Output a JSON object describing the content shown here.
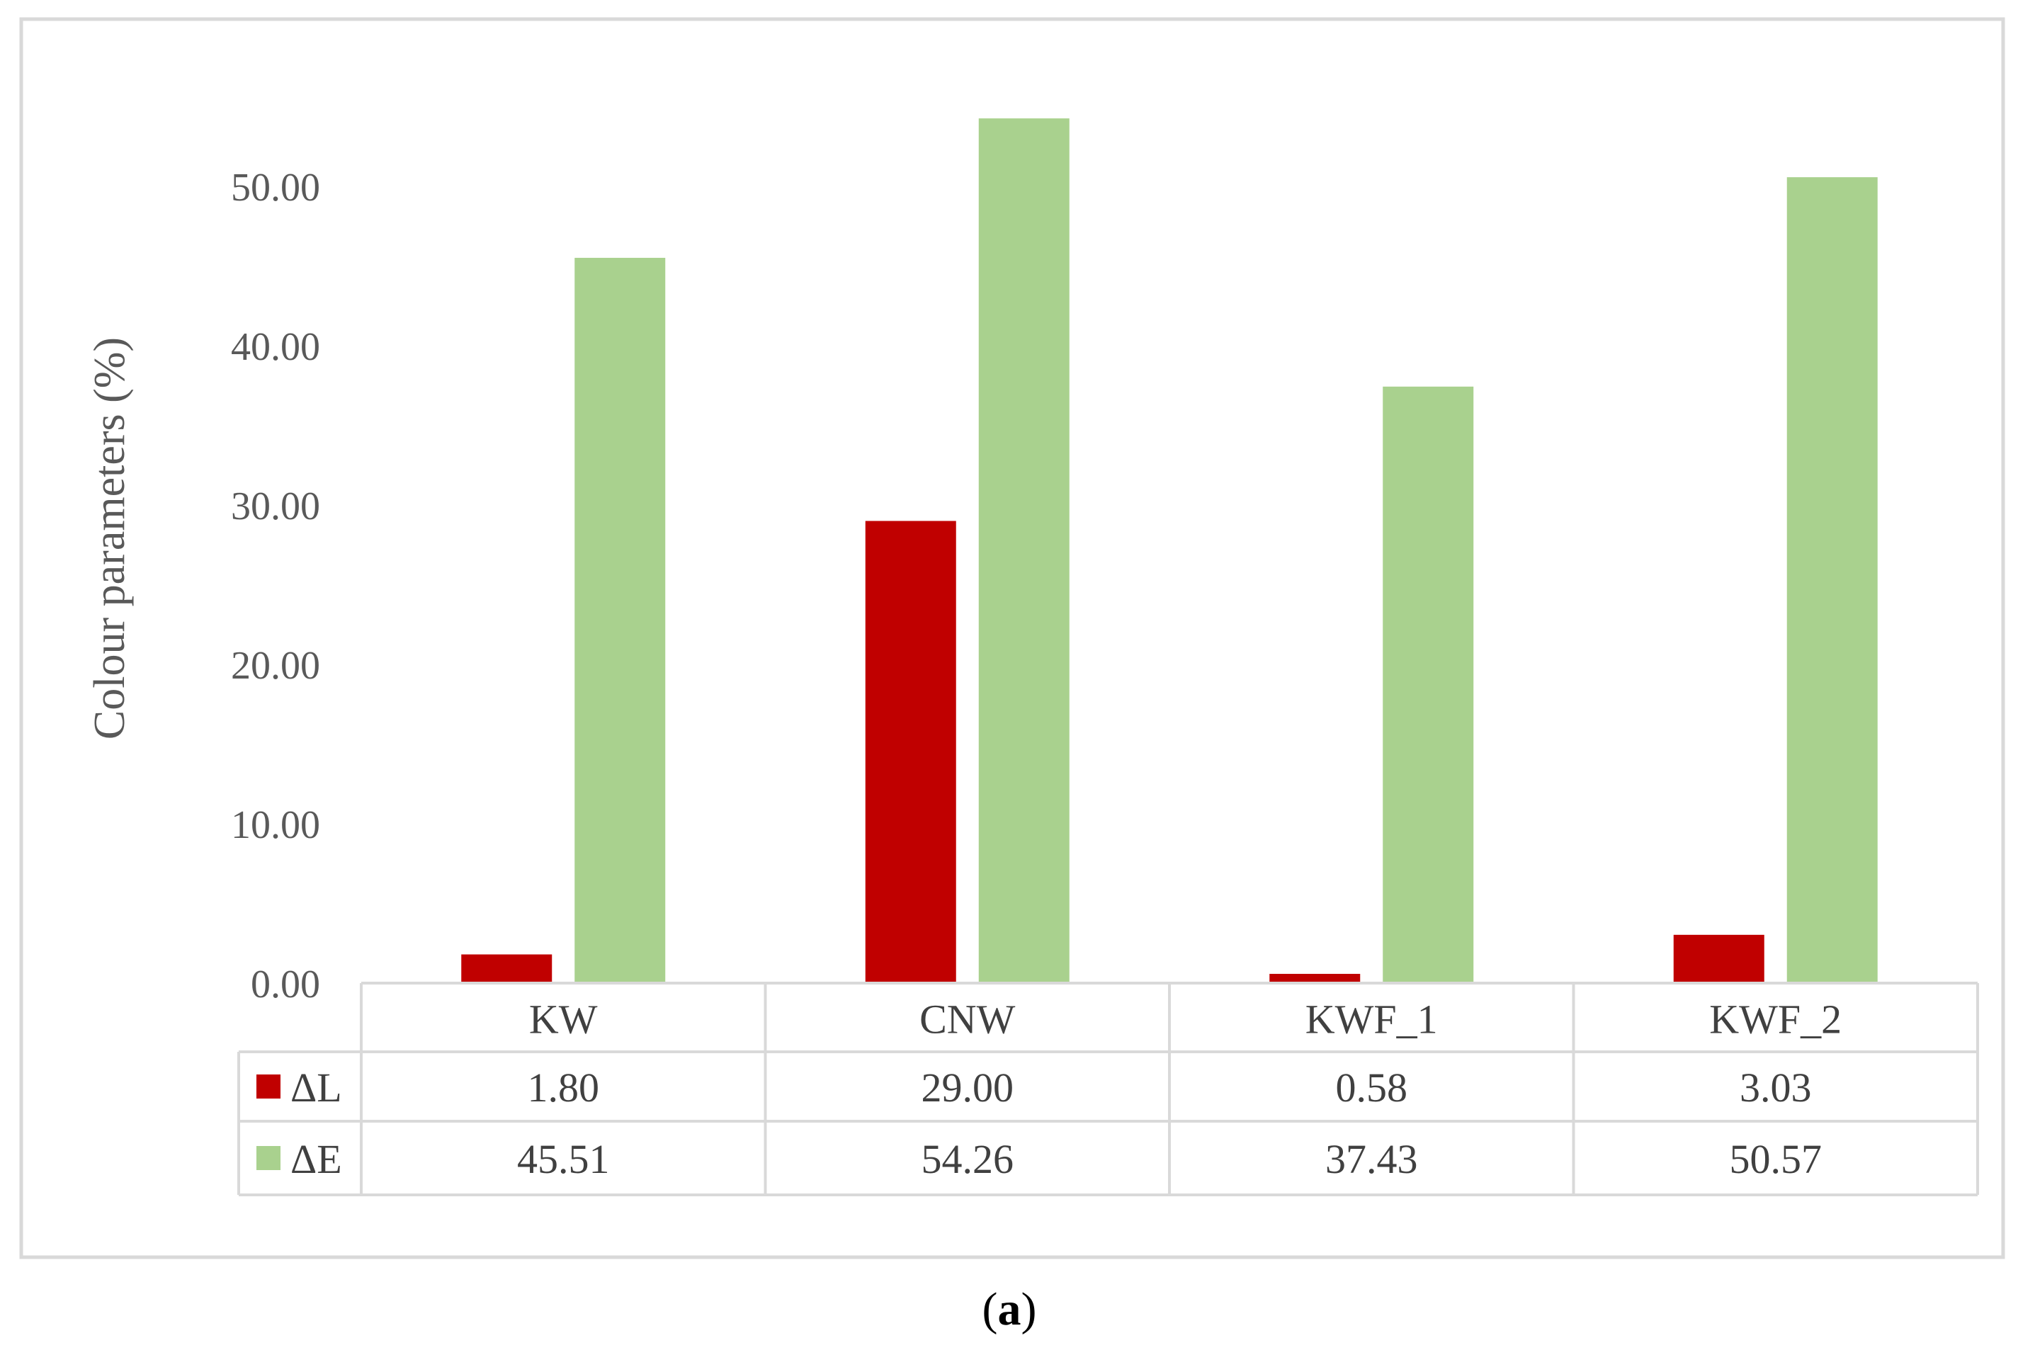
{
  "chart_data": {
    "type": "bar",
    "categories": [
      "KW",
      "CNW",
      "KWF_1",
      "KWF_2"
    ],
    "series": [
      {
        "name": "ΔL",
        "color": "#c00000",
        "values": [
          1.8,
          29.0,
          0.58,
          3.03
        ],
        "labels": [
          "1.80",
          "29.00",
          "0.58",
          "3.03"
        ]
      },
      {
        "name": "ΔE",
        "color": "#a9d18e",
        "values": [
          45.51,
          54.26,
          37.43,
          50.57
        ],
        "labels": [
          "45.51",
          "54.26",
          "37.43",
          "50.57"
        ]
      }
    ],
    "ylabel": "Colour parameters (%)",
    "ylim": [
      0,
      50
    ],
    "yticks": [
      "0.00",
      "10.00",
      "20.00",
      "30.00",
      "40.00",
      "50.00"
    ],
    "grid": false,
    "legend": "data-table"
  },
  "caption": {
    "open": "(",
    "letter": "a",
    "close": ")"
  }
}
